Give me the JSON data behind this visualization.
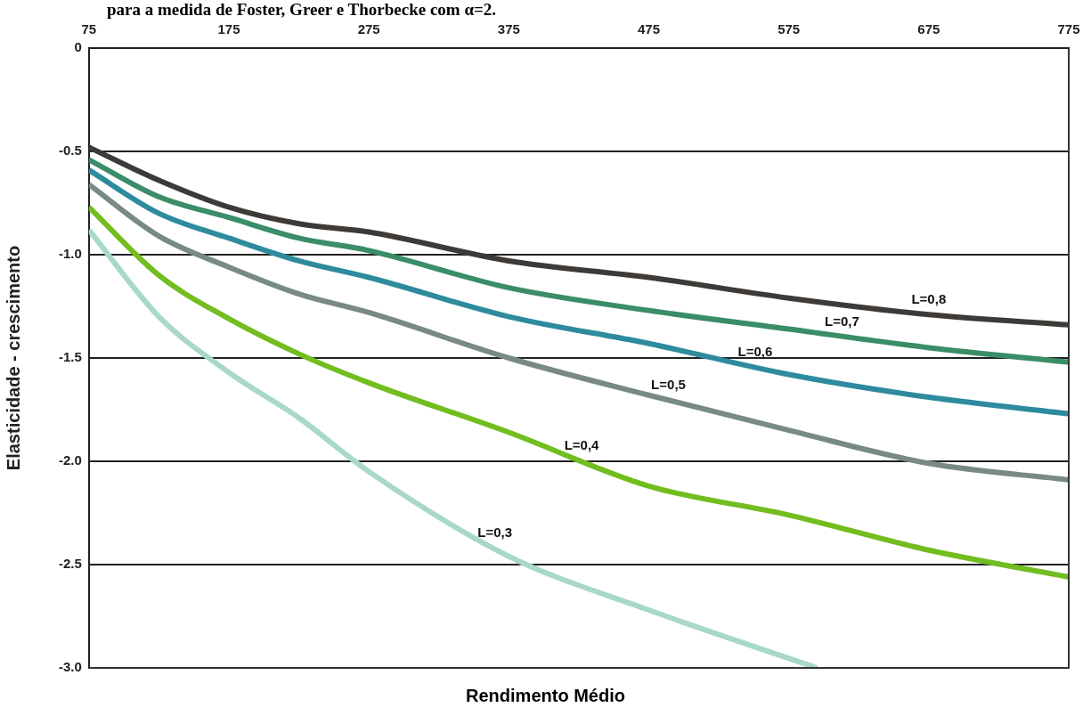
{
  "chart_data": {
    "type": "line",
    "title": "para a medida de Foster, Greer e Thorbecke com α=2.",
    "xlabel": "Rendimento Médio",
    "ylabel": "Elasticidade - crescimento",
    "xlim": [
      75,
      775
    ],
    "xticks": [
      75,
      175,
      275,
      375,
      475,
      575,
      675,
      775
    ],
    "ylim": [
      -3,
      0
    ],
    "yticks": [
      {
        "value": -3,
        "label": "-3.0"
      },
      {
        "value": -2.5,
        "label": "-2.5"
      },
      {
        "value": -2,
        "label": "-2.0"
      },
      {
        "value": -1.5,
        "label": "-1.5"
      },
      {
        "value": -1,
        "label": "-1.0"
      },
      {
        "value": -0.5,
        "label": "-0.5"
      },
      0
    ],
    "grid": "y",
    "legend": false,
    "marker": "none",
    "line_style": "solid",
    "series": [
      {
        "name": "L=0,8",
        "color": "#3d3a37",
        "x": [
          75,
          125,
          175,
          225,
          275,
          375,
          475,
          575,
          675,
          775
        ],
        "values": [
          -0.48,
          -0.64,
          -0.77,
          -0.85,
          -0.89,
          -1.03,
          -1.11,
          -1.21,
          -1.29,
          -1.34
        ]
      },
      {
        "name": "L=0,7",
        "color": "#3a8d68",
        "x": [
          75,
          125,
          175,
          225,
          275,
          375,
          475,
          575,
          675,
          775
        ],
        "values": [
          -0.54,
          -0.72,
          -0.82,
          -0.92,
          -0.98,
          -1.16,
          -1.27,
          -1.36,
          -1.45,
          -1.52
        ]
      },
      {
        "name": "L=0,6",
        "color": "#2e8b9e",
        "x": [
          75,
          125,
          175,
          225,
          275,
          375,
          475,
          575,
          675,
          775
        ],
        "values": [
          -0.59,
          -0.8,
          -0.92,
          -1.03,
          -1.11,
          -1.3,
          -1.43,
          -1.58,
          -1.69,
          -1.77
        ]
      },
      {
        "name": "L=0,5",
        "color": "#788a84",
        "x": [
          75,
          125,
          175,
          225,
          275,
          375,
          475,
          575,
          675,
          775
        ],
        "values": [
          -0.66,
          -0.91,
          -1.06,
          -1.19,
          -1.28,
          -1.5,
          -1.68,
          -1.85,
          -2.01,
          -2.09
        ]
      },
      {
        "name": "L=0,4",
        "color": "#72bd1f",
        "x": [
          75,
          125,
          175,
          225,
          275,
          375,
          475,
          575,
          675,
          775
        ],
        "values": [
          -0.77,
          -1.1,
          -1.31,
          -1.48,
          -1.62,
          -1.86,
          -2.12,
          -2.26,
          -2.43,
          -2.56
        ]
      },
      {
        "name": "L=0,3",
        "color": "#a8d8c6",
        "x": [
          75,
          125,
          175,
          225,
          275,
          375,
          475,
          595
        ],
        "values": [
          -0.88,
          -1.3,
          -1.57,
          -1.79,
          -2.05,
          -2.46,
          -2.72,
          -3.0
        ]
      }
    ]
  }
}
